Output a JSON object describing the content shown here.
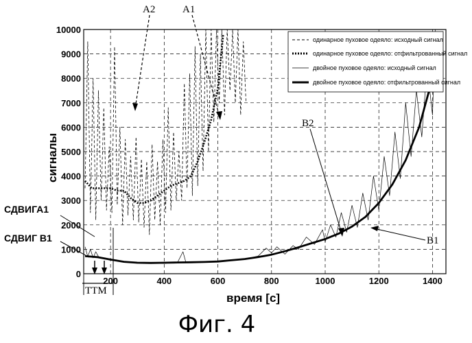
{
  "chart_data": {
    "type": "line",
    "title": "",
    "xlabel": "время [с]",
    "ylabel": "сигналы",
    "xlim": [
      100,
      1450
    ],
    "ylim": [
      0,
      10000
    ],
    "x_ticks": [
      200,
      400,
      600,
      800,
      1000,
      1200,
      1400
    ],
    "y_ticks": [
      0,
      1000,
      2000,
      3000,
      4000,
      5000,
      6000,
      7000,
      8000,
      9000,
      10000
    ],
    "grid": "dashed",
    "legend_position": "top-right",
    "series": [
      {
        "name": "одинарное пуховое одеяло: исходный сигнал",
        "style": "thin-dashed",
        "x": [
          105,
          115,
          125,
          135,
          145,
          155,
          165,
          175,
          185,
          195,
          205,
          215,
          225,
          235,
          245,
          255,
          265,
          275,
          285,
          295,
          305,
          315,
          325,
          335,
          345,
          355,
          365,
          375,
          385,
          395,
          405,
          415,
          425,
          435,
          445,
          455,
          465,
          475,
          485,
          495,
          505,
          515,
          525,
          535,
          545,
          555,
          565,
          575,
          585,
          595,
          605,
          615,
          625,
          635,
          645,
          655,
          665,
          675,
          685,
          695,
          705
        ],
        "y": [
          3500,
          9500,
          2500,
          8000,
          2200,
          7500,
          3000,
          6800,
          2600,
          5200,
          2500,
          9300,
          2800,
          6000,
          2000,
          5500,
          2400,
          4800,
          2200,
          5600,
          2100,
          4700,
          1900,
          4600,
          1600,
          5300,
          2200,
          4600,
          2000,
          5500,
          2500,
          6800,
          2600,
          5800,
          3000,
          5000,
          3000,
          7800,
          3500,
          8200,
          3200,
          9300,
          3600,
          9000,
          4200,
          10000,
          5000,
          10000,
          6200,
          10000,
          7000,
          10000,
          6500,
          10000,
          7500,
          10000,
          7000,
          10000,
          6500,
          9500,
          7000
        ]
      },
      {
        "name": "одинарное пуховое одеяло: отфильтрованный сигнал",
        "style": "dotted",
        "x": [
          105,
          130,
          150,
          175,
          200,
          225,
          250,
          275,
          300,
          325,
          350,
          375,
          400,
          425,
          450,
          475,
          500,
          525,
          550,
          575,
          600,
          620
        ],
        "y": [
          3800,
          3500,
          3500,
          3500,
          3500,
          3400,
          3400,
          3100,
          2900,
          2900,
          3000,
          3200,
          3400,
          3600,
          3700,
          3800,
          4000,
          4600,
          5400,
          6300,
          7600,
          9800
        ]
      },
      {
        "name": "двойное пуховое одеяло: исходный сигнал",
        "style": "thin-solid",
        "x": [
          105,
          115,
          125,
          135,
          145,
          155,
          200,
          250,
          300,
          350,
          400,
          450,
          470,
          480,
          500,
          550,
          600,
          650,
          700,
          750,
          780,
          800,
          820,
          850,
          880,
          900,
          930,
          960,
          990,
          1000,
          1020,
          1040,
          1060,
          1080,
          1100,
          1120,
          1140,
          1160,
          1180,
          1200,
          1220,
          1240,
          1260,
          1280,
          1300,
          1320,
          1340,
          1360,
          1380,
          1400,
          1410
        ],
        "y": [
          1100,
          700,
          1000,
          650,
          900,
          700,
          560,
          480,
          450,
          430,
          420,
          470,
          900,
          500,
          480,
          480,
          500,
          550,
          600,
          720,
          1050,
          850,
          1100,
          800,
          1150,
          1000,
          1500,
          1200,
          1800,
          1300,
          2000,
          1500,
          2500,
          1700,
          2800,
          1900,
          3300,
          2200,
          4000,
          2600,
          4800,
          3200,
          5800,
          3900,
          7000,
          4800,
          7500,
          5600,
          8500,
          6500,
          10000
        ]
      },
      {
        "name": "двойное пуховое одеяло: отфильтрованный сигнал",
        "style": "thick-solid",
        "x": [
          105,
          150,
          200,
          250,
          300,
          350,
          400,
          450,
          500,
          550,
          600,
          650,
          700,
          750,
          800,
          850,
          900,
          950,
          1000,
          1050,
          1100,
          1150,
          1200,
          1250,
          1300,
          1350,
          1400,
          1430
        ],
        "y": [
          720,
          680,
          580,
          490,
          450,
          440,
          450,
          460,
          470,
          480,
          500,
          550,
          600,
          680,
          780,
          920,
          1080,
          1250,
          1420,
          1640,
          1930,
          2330,
          2900,
          3650,
          4650,
          6000,
          8000,
          9800
        ]
      }
    ],
    "annotations": {
      "a1": "A1",
      "a2": "A2",
      "b1": "B1",
      "b2": "B2",
      "shift_a1": "СДВИГА1",
      "shift_b1": "СДВИГ B1",
      "ttm": "TTM"
    }
  },
  "figure_caption": "Фиг. 4"
}
